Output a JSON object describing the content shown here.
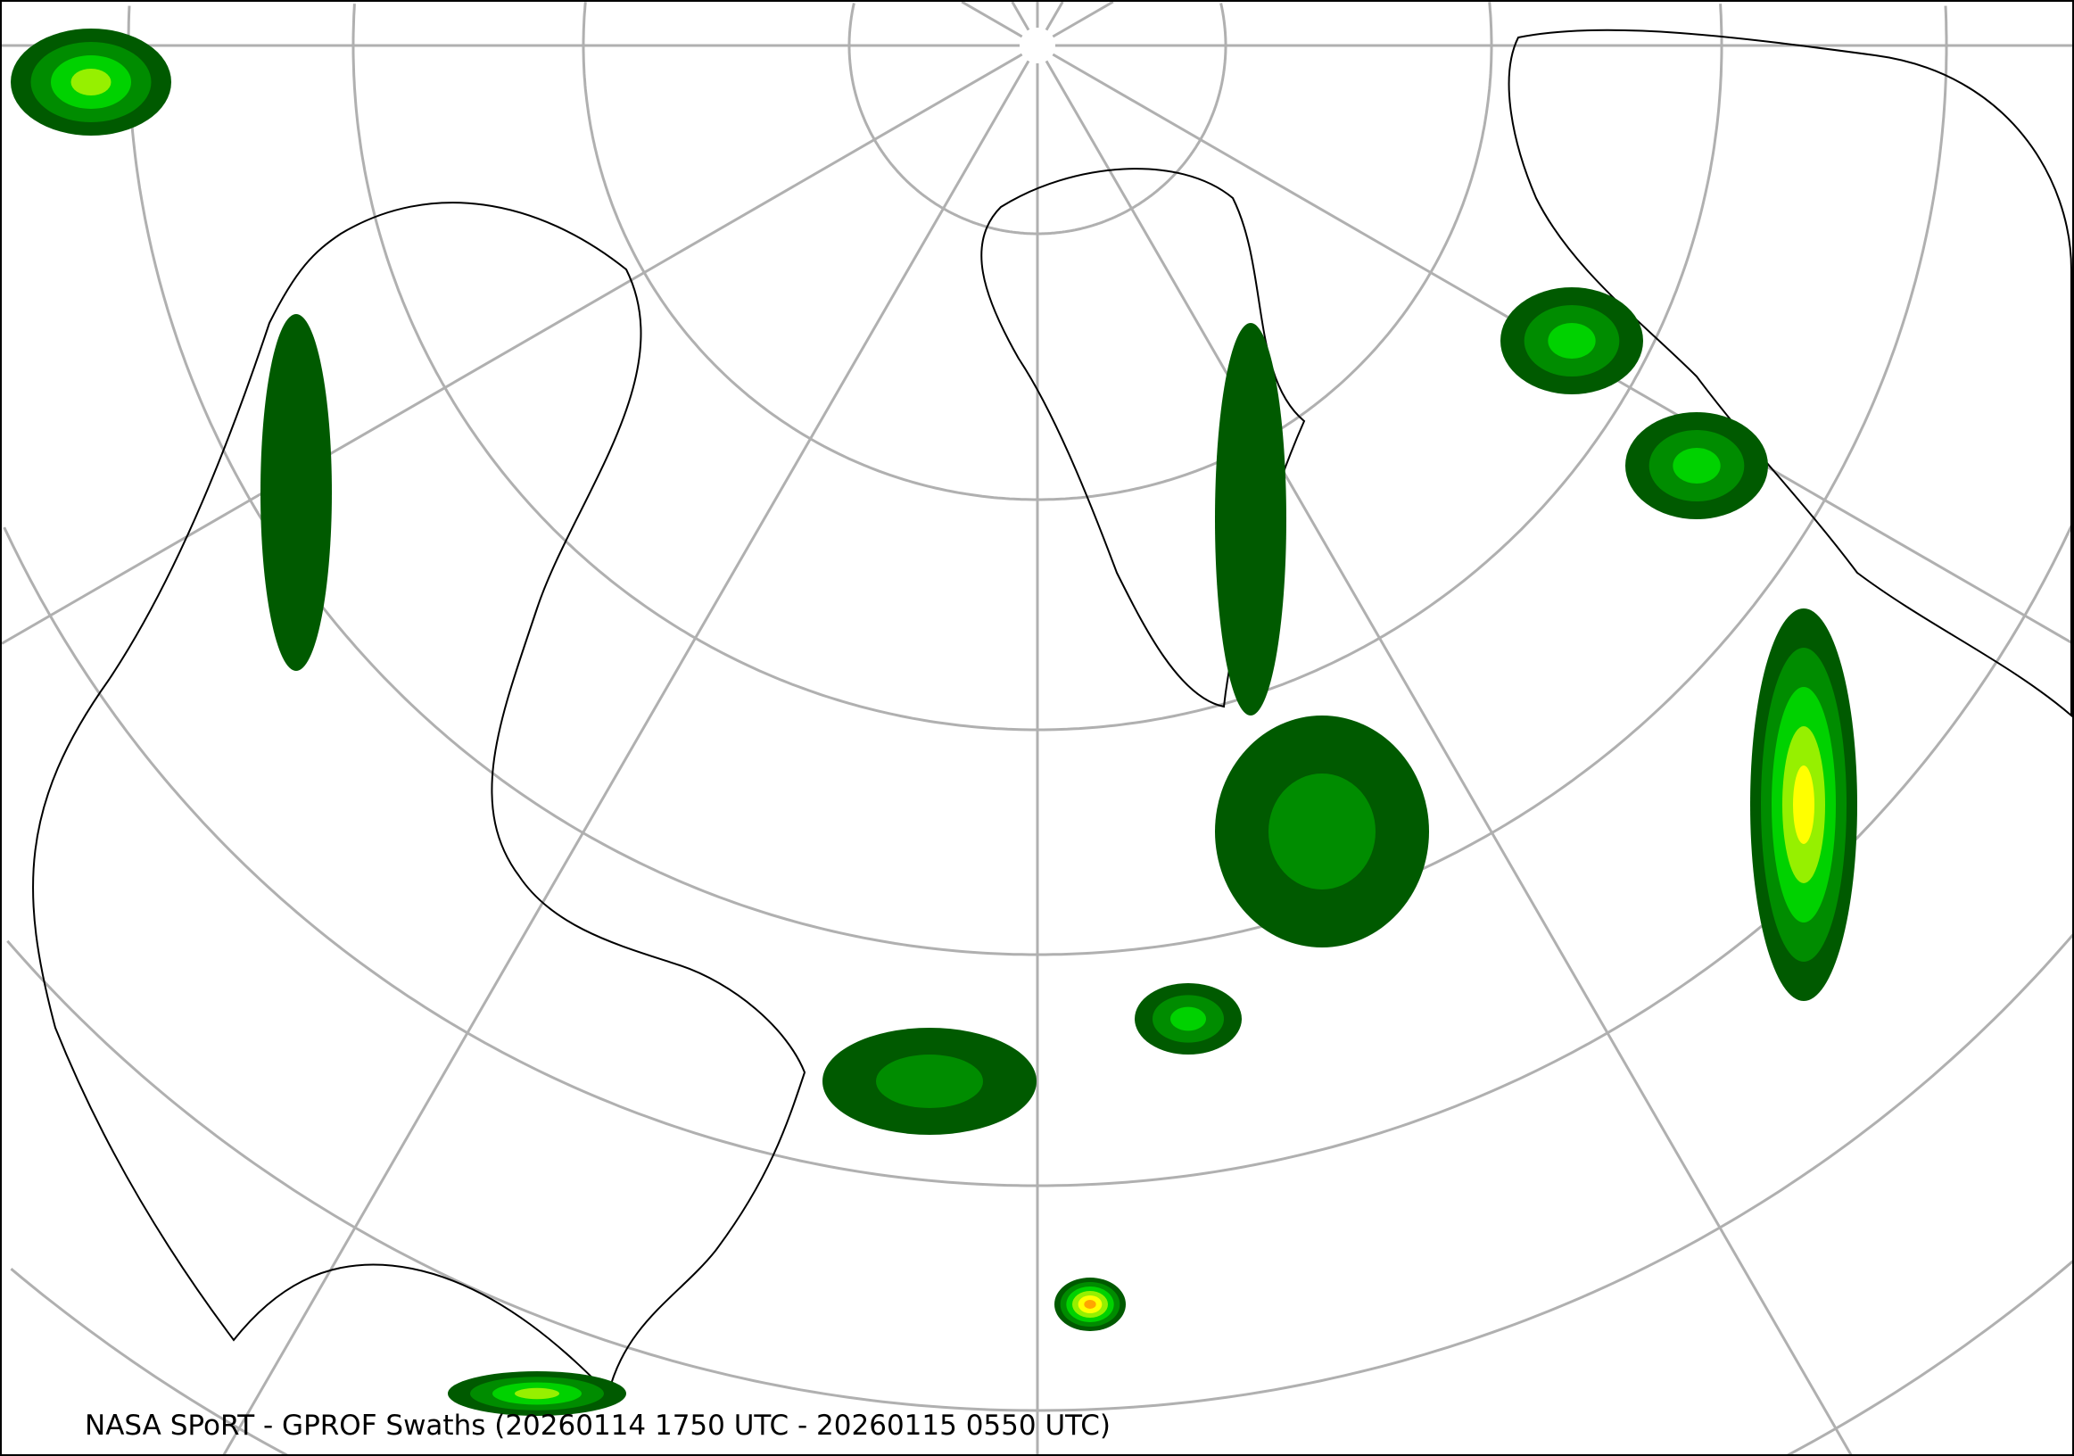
{
  "caption": "NASA SPoRT - GPROF Swaths (20260114 1750 UTC - 20260115 0550 UTC)",
  "map": {
    "projection": "north-polar-stereographic",
    "graticule_color": "#b0b0b0",
    "coastline_color": "#000000",
    "precip_colors": [
      "#005a00",
      "#008c00",
      "#00d200",
      "#96f000",
      "#ffff00",
      "#ffa500",
      "#ff0000"
    ]
  }
}
